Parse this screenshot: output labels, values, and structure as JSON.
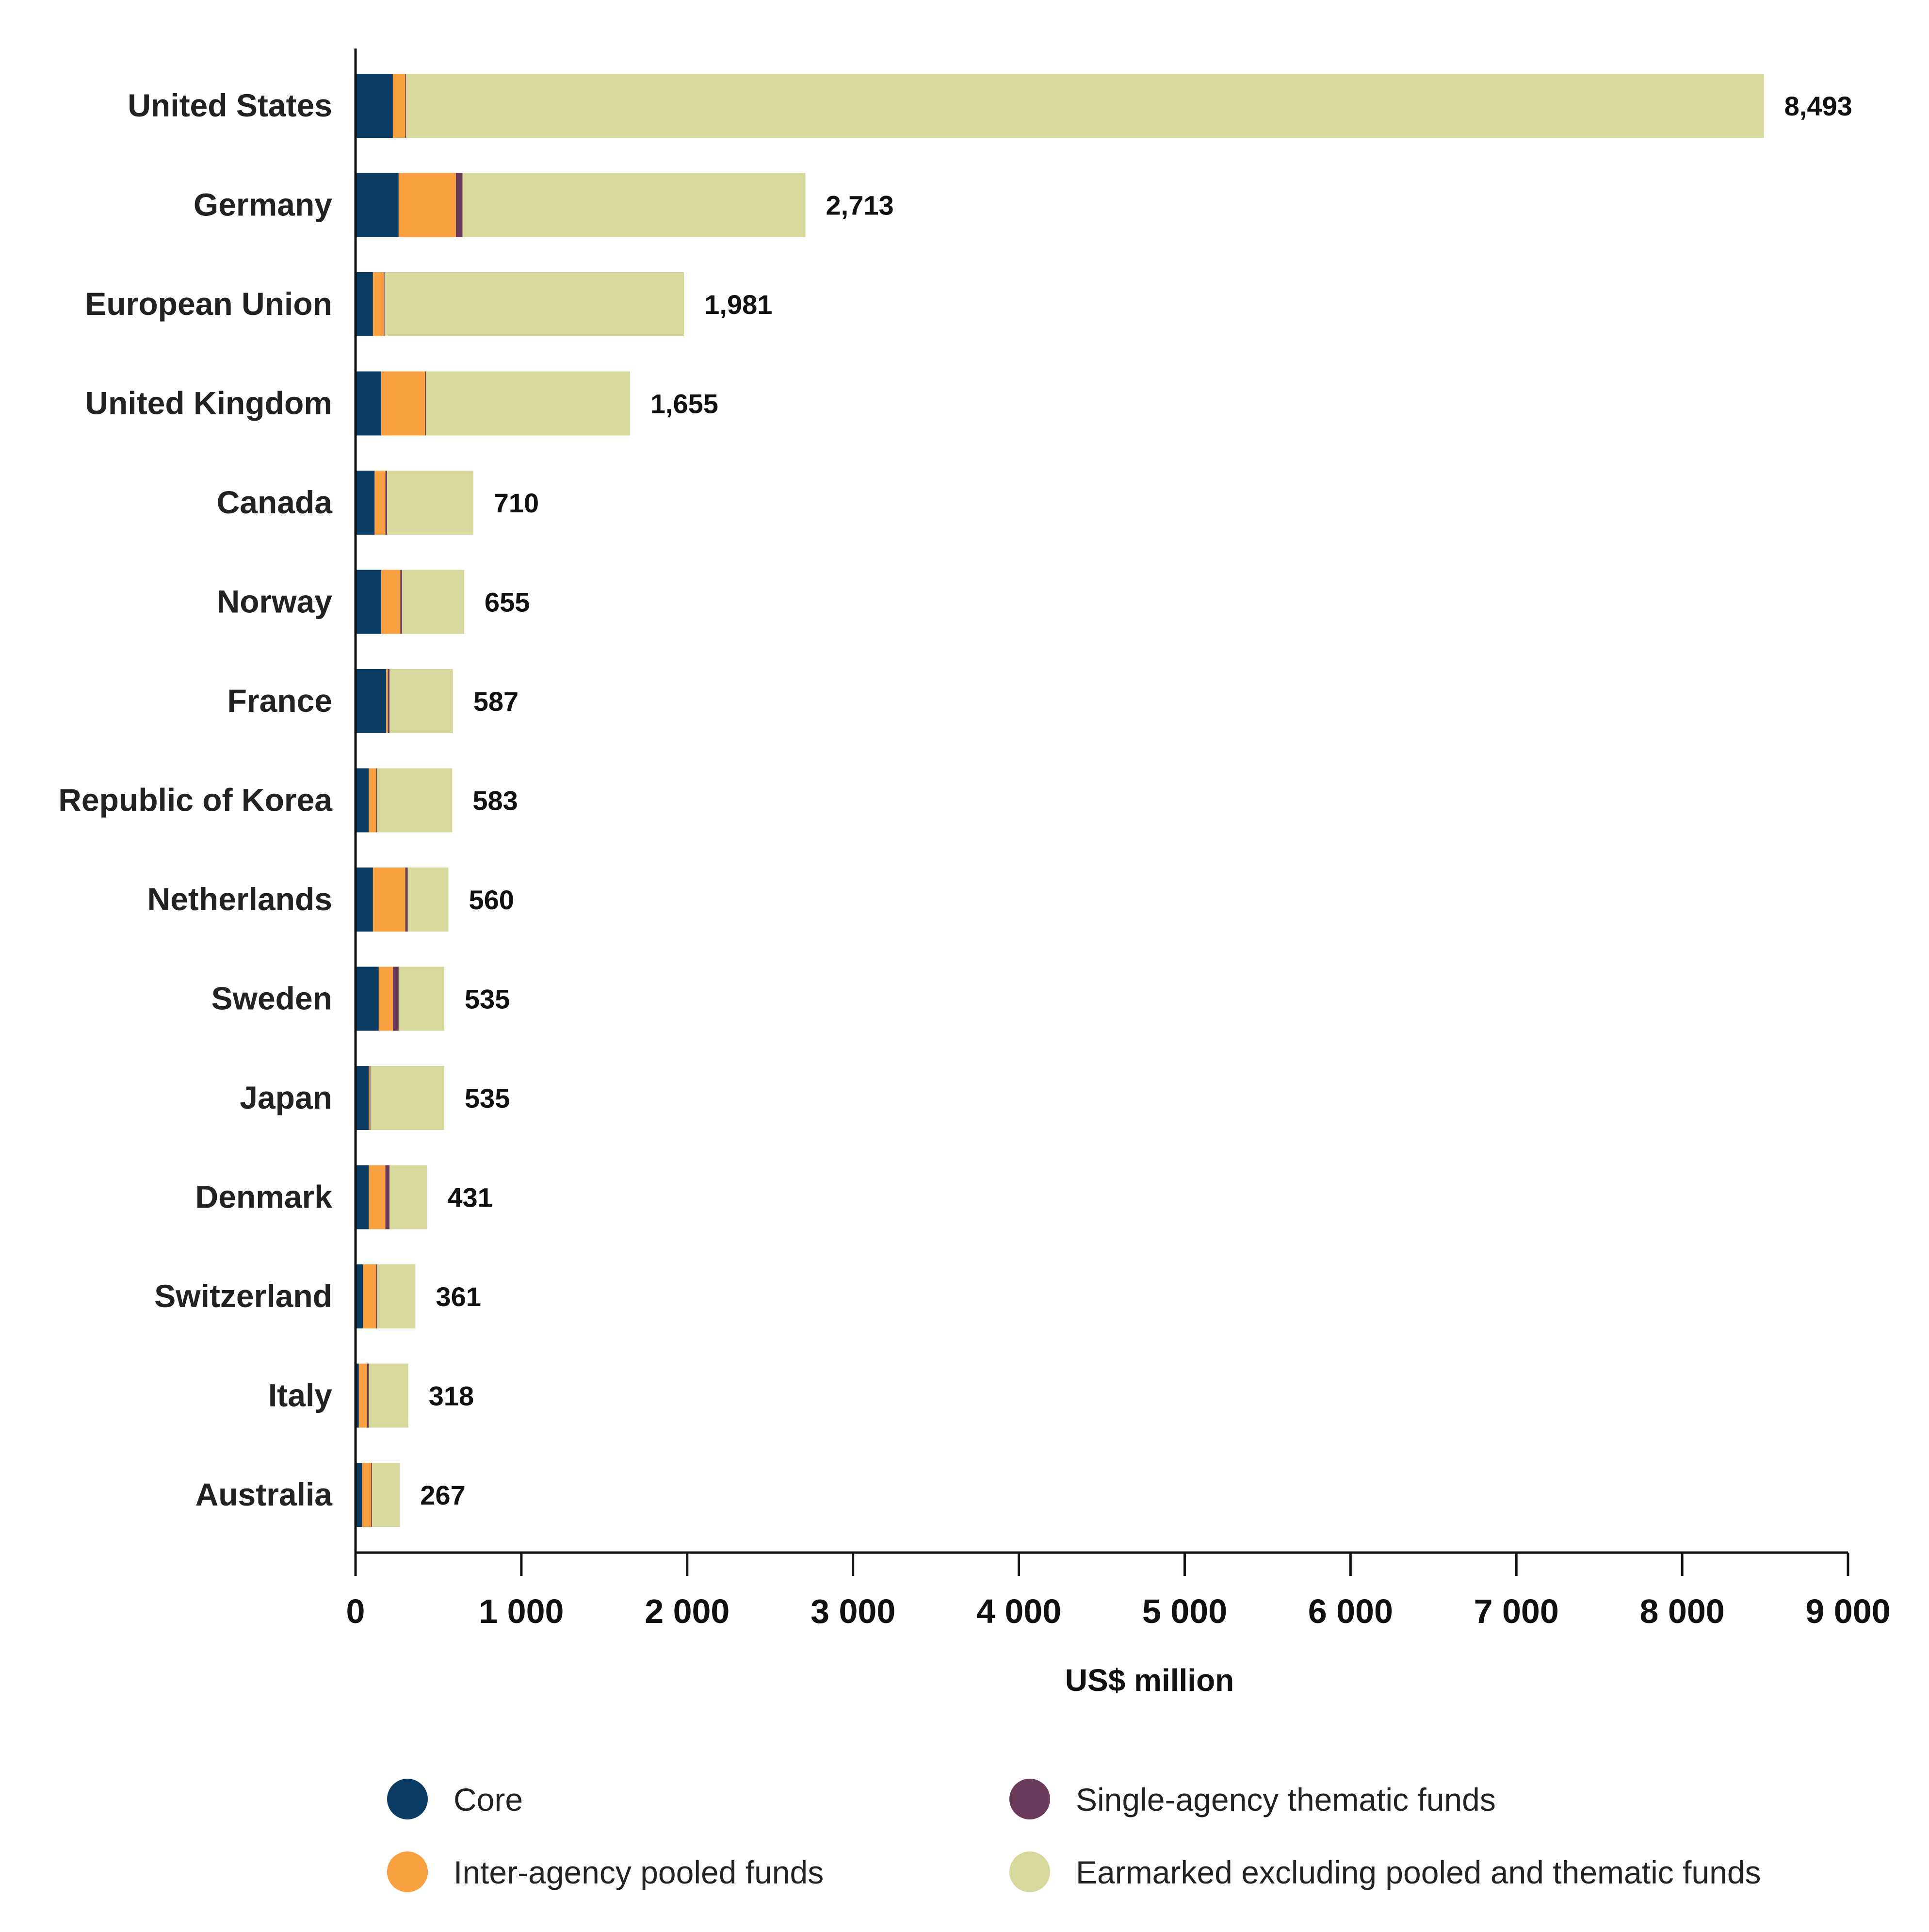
{
  "chart_data": {
    "type": "bar",
    "orientation": "horizontal",
    "stacked": true,
    "categories": [
      "United States",
      "Germany",
      "European Union",
      "United Kingdom",
      "Canada",
      "Norway",
      "France",
      "Republic of Korea",
      "Netherlands",
      "Sweden",
      "Japan",
      "Denmark",
      "Switzerland",
      "Italy",
      "Australia"
    ],
    "series": [
      {
        "name": "Core",
        "color": "#0b3c64",
        "values": [
          225,
          260,
          105,
          155,
          115,
          155,
          185,
          80,
          105,
          140,
          80,
          80,
          45,
          20,
          40
        ]
      },
      {
        "name": "Inter-agency pooled funds",
        "color": "#f9a040",
        "values": [
          75,
          345,
          65,
          265,
          65,
          115,
          10,
          45,
          195,
          85,
          5,
          100,
          80,
          50,
          55
        ]
      },
      {
        "name": "Single-agency thematic funds",
        "color": "#6a3a5a",
        "values": [
          5,
          40,
          5,
          5,
          10,
          10,
          10,
          5,
          15,
          35,
          5,
          25,
          5,
          10,
          5
        ]
      },
      {
        "name": "Earmarked excluding pooled and thematic funds",
        "color": "#d6d89c",
        "values": [
          8188,
          2068,
          1806,
          1230,
          520,
          375,
          382,
          453,
          245,
          275,
          445,
          226,
          231,
          238,
          167
        ]
      }
    ],
    "totals": [
      8493,
      2713,
      1981,
      1655,
      710,
      655,
      587,
      583,
      560,
      535,
      535,
      431,
      361,
      318,
      267
    ],
    "total_labels": [
      "8,493",
      "2,713",
      "1,981",
      "1,655",
      "710",
      "655",
      "587",
      "583",
      "560",
      "535",
      "535",
      "431",
      "361",
      "318",
      "267"
    ],
    "xticks": [
      0,
      1000,
      2000,
      3000,
      4000,
      5000,
      6000,
      7000,
      8000,
      9000
    ],
    "xtick_labels": [
      "0",
      "1 000",
      "2 000",
      "3 000",
      "4 000",
      "5 000",
      "6 000",
      "7 000",
      "8 000",
      "9 000"
    ],
    "xlim": [
      0,
      9000
    ],
    "xlabel": "US$ million",
    "ylabel": "",
    "title": "",
    "grid": false,
    "legend_position": "bottom"
  }
}
